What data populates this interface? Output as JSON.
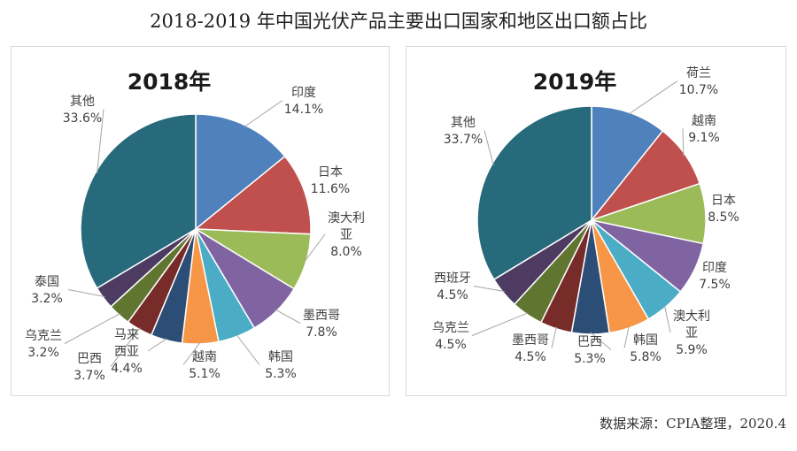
{
  "title": "2018-2019 年中国光伏产品主要出口国家和地区出口额占比",
  "source": "数据来源：CPIA整理，2020.4",
  "chart_data": [
    {
      "type": "pie",
      "title": "2018年",
      "start": "12 o'clock",
      "direction": "clockwise",
      "slices": [
        {
          "lines": [
            "印度"
          ],
          "pct": "14.1%",
          "value": 14.1,
          "color": "#4f81bd"
        },
        {
          "lines": [
            "日本"
          ],
          "pct": "11.6%",
          "value": 11.6,
          "color": "#c0504d"
        },
        {
          "lines": [
            "澳大利",
            "亚"
          ],
          "pct": "8.0%",
          "value": 8.0,
          "color": "#9bbb59"
        },
        {
          "lines": [
            "墨西哥"
          ],
          "pct": "7.8%",
          "value": 7.8,
          "color": "#8064a2"
        },
        {
          "lines": [
            "韩国"
          ],
          "pct": "5.3%",
          "value": 5.3,
          "color": "#4bacc6"
        },
        {
          "lines": [
            "越南"
          ],
          "pct": "5.1%",
          "value": 5.1,
          "color": "#f79646"
        },
        {
          "lines": [
            "马来",
            "西亚"
          ],
          "pct": "4.4%",
          "value": 4.4,
          "color": "#2c4d75"
        },
        {
          "lines": [
            "巴西"
          ],
          "pct": "3.7%",
          "value": 3.7,
          "color": "#772c2a"
        },
        {
          "lines": [
            "乌克兰"
          ],
          "pct": "3.2%",
          "value": 3.2,
          "color": "#5f7530"
        },
        {
          "lines": [
            "泰国"
          ],
          "pct": "3.2%",
          "value": 3.2,
          "color": "#4d3b62"
        },
        {
          "lines": [
            "其他"
          ],
          "pct": "33.6%",
          "value": 33.6,
          "color": "#276a7c"
        }
      ]
    },
    {
      "type": "pie",
      "title": "2019年",
      "start": "12 o'clock",
      "direction": "clockwise",
      "slices": [
        {
          "lines": [
            "荷兰"
          ],
          "pct": "10.7%",
          "value": 10.7,
          "color": "#4f81bd"
        },
        {
          "lines": [
            "越南"
          ],
          "pct": "9.1%",
          "value": 9.1,
          "color": "#c0504d"
        },
        {
          "lines": [
            "日本"
          ],
          "pct": "8.5%",
          "value": 8.5,
          "color": "#9bbb59"
        },
        {
          "lines": [
            "印度"
          ],
          "pct": "7.5%",
          "value": 7.5,
          "color": "#8064a2"
        },
        {
          "lines": [
            "澳大利",
            "亚"
          ],
          "pct": "5.9%",
          "value": 5.9,
          "color": "#4bacc6"
        },
        {
          "lines": [
            "韩国"
          ],
          "pct": "5.8%",
          "value": 5.8,
          "color": "#f79646"
        },
        {
          "lines": [
            "巴西"
          ],
          "pct": "5.3%",
          "value": 5.3,
          "color": "#2c4d75"
        },
        {
          "lines": [
            "墨西哥"
          ],
          "pct": "4.5%",
          "value": 4.5,
          "color": "#772c2a"
        },
        {
          "lines": [
            "乌克兰"
          ],
          "pct": "4.5%",
          "value": 4.5,
          "color": "#5f7530"
        },
        {
          "lines": [
            "西班牙"
          ],
          "pct": "4.5%",
          "value": 4.5,
          "color": "#4d3b62"
        },
        {
          "lines": [
            "其他"
          ],
          "pct": "33.7%",
          "value": 33.7,
          "color": "#276a7c"
        }
      ]
    }
  ]
}
